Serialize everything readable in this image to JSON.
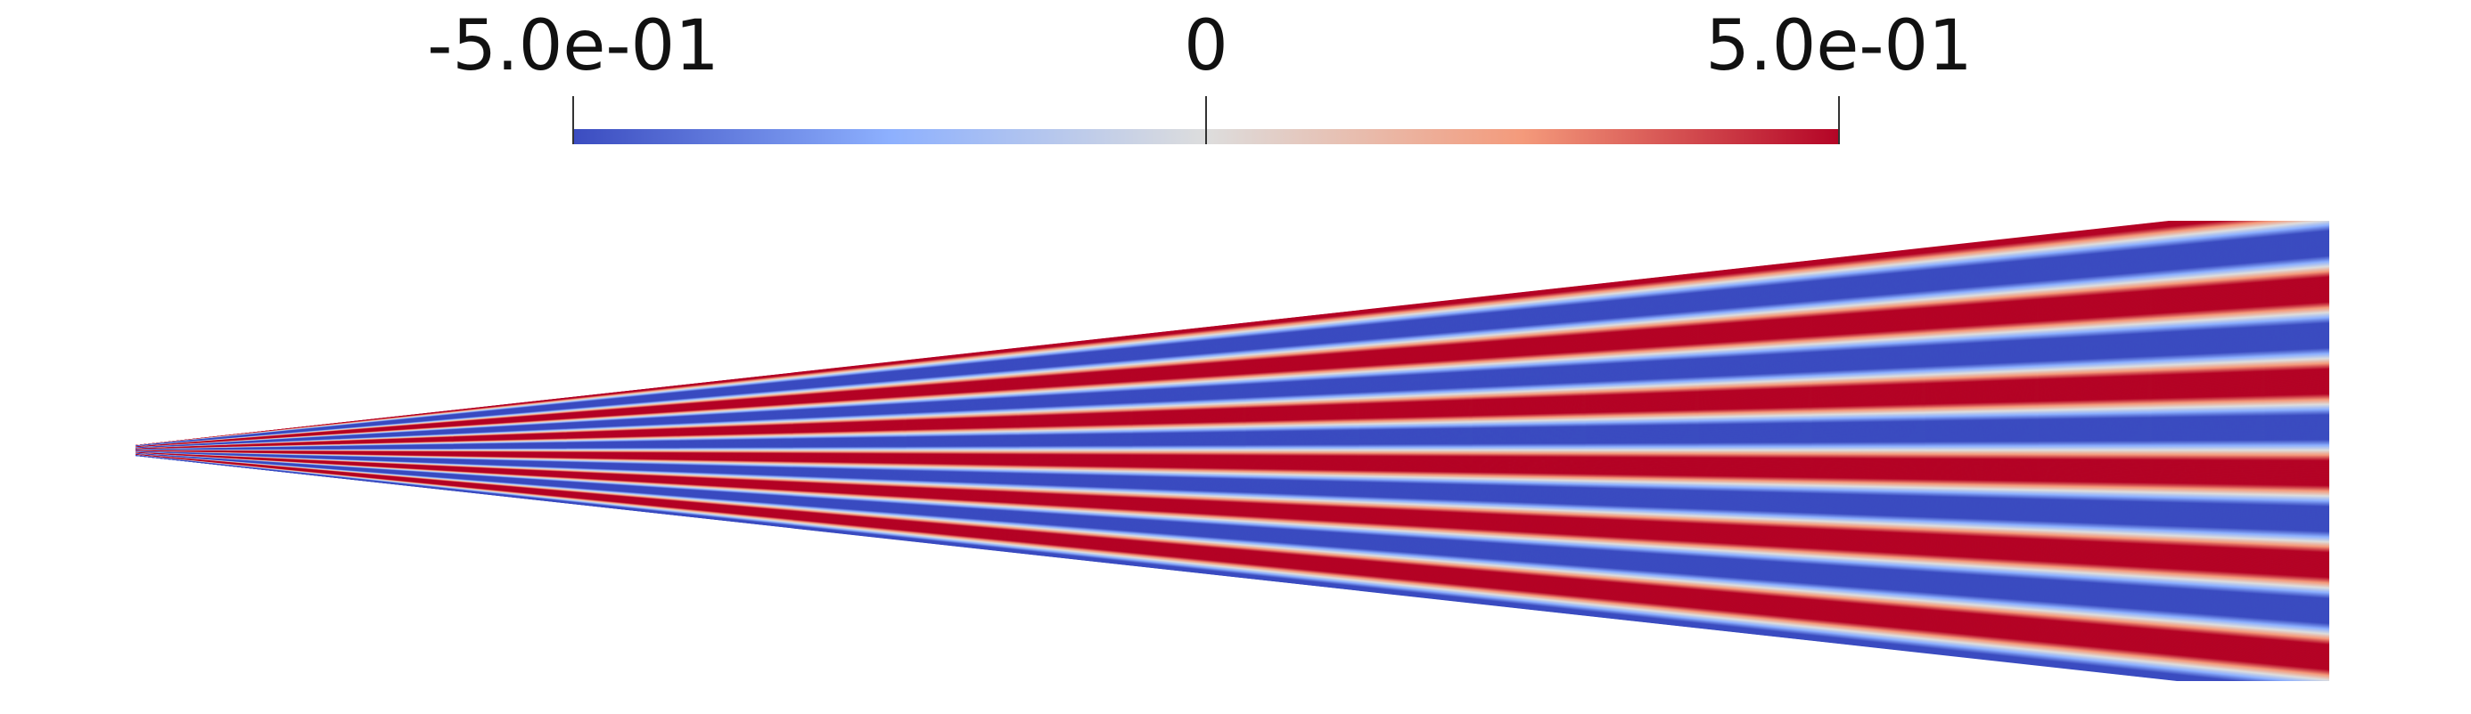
{
  "colorbar": {
    "range": [
      -0.5,
      0.5
    ],
    "ticks": [
      {
        "value": -0.5,
        "label": "-5.0e-01"
      },
      0,
      {
        "value": 0.5,
        "label": "5.0e-01"
      }
    ],
    "colormap": [
      "#3b4cc0",
      "#8db0fe",
      "#dddddd",
      "#f49a7b",
      "#b40426"
    ]
  }
}
